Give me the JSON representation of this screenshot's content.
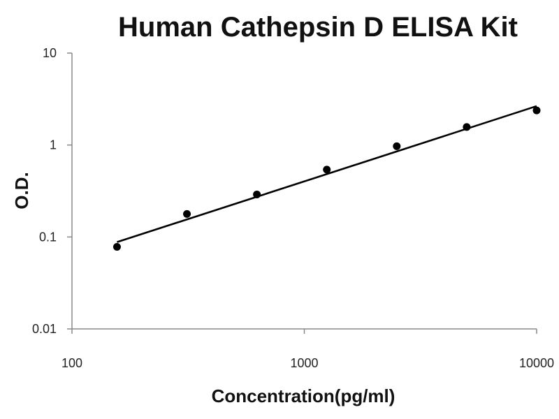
{
  "chart_data": {
    "type": "scatter",
    "title": "Human Cathepsin D ELISA Kit",
    "xlabel": "Concentration(pg/ml)",
    "ylabel": "O.D.",
    "x_scale": "log",
    "y_scale": "log",
    "xlim": [
      100,
      10000
    ],
    "ylim": [
      0.01,
      10
    ],
    "x_ticks": [
      100,
      1000,
      10000
    ],
    "x_tick_labels": [
      "100",
      "1000",
      "10000"
    ],
    "y_ticks": [
      0.01,
      0.1,
      1,
      10
    ],
    "y_tick_labels": [
      "0.01",
      "0.1",
      "1",
      "10"
    ],
    "grid": false,
    "series": [
      {
        "x": [
          156.25,
          312.5,
          625,
          1250,
          2500,
          5000,
          10000
        ],
        "y": [
          0.078,
          0.178,
          0.29,
          0.54,
          0.97,
          1.57,
          2.38
        ]
      }
    ],
    "fit_line": {
      "x": [
        156.25,
        10000
      ],
      "y": [
        0.088,
        2.65
      ]
    },
    "colors": {
      "points": "#000000",
      "line": "#000000",
      "axes": "#888888"
    }
  }
}
